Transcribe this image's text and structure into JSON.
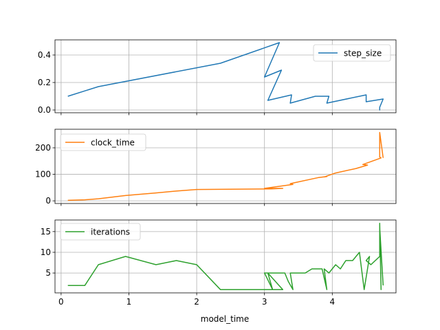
{
  "chart_data": [
    {
      "type": "line",
      "series": [
        {
          "name": "step_size",
          "color": "#1f77b4",
          "x": [
            0.1,
            0.55,
            2.35,
            3.22,
            3.0,
            3.25,
            3.05,
            3.4,
            3.38,
            3.75,
            3.95,
            3.92,
            4.5,
            4.5,
            4.75,
            4.7,
            4.7,
            4.7
          ],
          "y": [
            0.1,
            0.17,
            0.34,
            0.49,
            0.24,
            0.29,
            0.07,
            0.11,
            0.05,
            0.1,
            0.1,
            0.05,
            0.11,
            0.06,
            0.08,
            0.02,
            0.0,
            0.01
          ]
        }
      ],
      "xlim": [
        -0.09,
        4.94
      ],
      "ylim": [
        -0.02,
        0.51
      ],
      "yticks": [
        0.0,
        0.2,
        0.4
      ],
      "ytick_labels": [
        "0.0",
        "0.2",
        "0.4"
      ],
      "xticks": [
        0,
        1,
        2,
        3,
        4
      ],
      "show_xtick_labels": false,
      "legend": "upper right",
      "grid": true
    },
    {
      "type": "line",
      "series": [
        {
          "name": "clock_time",
          "color": "#ff7f0e",
          "x": [
            0.1,
            0.35,
            0.55,
            0.95,
            1.4,
            1.7,
            2.0,
            3.1,
            3.27,
            3.0,
            3.42,
            3.38,
            3.8,
            3.92,
            3.88,
            4.05,
            4.35,
            4.52,
            4.45,
            4.7,
            4.72,
            4.7,
            4.7,
            4.75
          ],
          "y": [
            2,
            4,
            8,
            20,
            30,
            37,
            43,
            45,
            47,
            47,
            62,
            65,
            88,
            92,
            90,
            105,
            122,
            135,
            137,
            160,
            162,
            165,
            258,
            162
          ]
        }
      ],
      "xlim": [
        -0.09,
        4.94
      ],
      "ylim": [
        -10,
        270
      ],
      "yticks": [
        0,
        100,
        200
      ],
      "ytick_labels": [
        "0",
        "100",
        "200"
      ],
      "xticks": [
        0,
        1,
        2,
        3,
        4
      ],
      "show_xtick_labels": false,
      "legend": "upper left",
      "grid": true
    },
    {
      "type": "line",
      "series": [
        {
          "name": "iterations",
          "color": "#2ca02c",
          "x": [
            0.1,
            0.35,
            0.55,
            0.95,
            1.4,
            1.7,
            2.0,
            2.35,
            3.27,
            3.05,
            3.12,
            3.0,
            3.3,
            3.35,
            3.42,
            3.38,
            3.6,
            3.7,
            3.85,
            3.92,
            3.88,
            3.95,
            4.05,
            4.12,
            4.2,
            4.3,
            4.4,
            4.47,
            4.55,
            4.5,
            4.57,
            4.7,
            4.7,
            4.72,
            4.7,
            4.75
          ],
          "y": [
            2,
            2,
            7,
            9,
            7,
            8,
            7,
            1,
            1,
            5,
            1,
            5,
            5,
            3,
            1,
            5,
            5,
            6,
            6,
            1,
            6,
            5,
            7,
            6,
            8,
            8,
            10,
            1,
            9,
            8,
            7,
            9,
            17,
            1,
            16,
            2
          ]
        }
      ],
      "xlim": [
        -0.09,
        4.94
      ],
      "ylim": [
        0.2,
        17.8
      ],
      "yticks": [
        5,
        10,
        15
      ],
      "ytick_labels": [
        "5",
        "10",
        "15"
      ],
      "xticks": [
        0,
        1,
        2,
        3,
        4
      ],
      "xtick_labels": [
        "0",
        "1",
        "2",
        "3",
        "4"
      ],
      "show_xtick_labels": true,
      "xlabel": "model_time",
      "legend": "upper left",
      "grid": true
    }
  ]
}
